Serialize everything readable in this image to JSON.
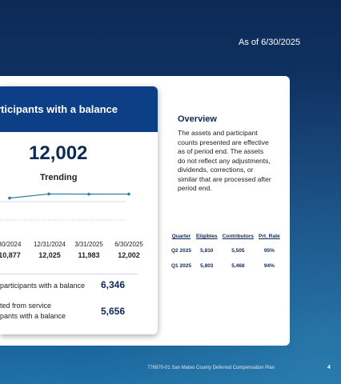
{
  "header": {
    "as_of": "As of 6/30/2025"
  },
  "participants_card": {
    "title": "rticipants with a balance",
    "current_value": "12,002",
    "trending_label": "Trending",
    "trend": [
      {
        "date": "30/2024",
        "value": "10,877",
        "num": 10877
      },
      {
        "date": "12/31/2024",
        "value": "12,025",
        "num": 12025
      },
      {
        "date": "3/31/2025",
        "value": "11,983",
        "num": 11983
      },
      {
        "date": "6/30/2025",
        "value": "12,002",
        "num": 12002
      }
    ],
    "stat1_label": "participants with a balance",
    "stat1_value": "6,346",
    "stat2_label_line1": "ted from service",
    "stat2_label_line2": "pants with a balance",
    "stat2_value": "5,656"
  },
  "overview": {
    "title": "Overview",
    "text": "The assets and participant counts presented are effective as of period end. The assets do not reflect any adjustments, dividends, corrections, or similar that are processed after period end."
  },
  "quarter_table": {
    "headers": [
      "Quarter",
      "Eligibles",
      "Contributors",
      "Prt. Rate"
    ],
    "rows": [
      [
        "Q2 2025",
        "5,810",
        "5,505",
        "95%"
      ],
      [
        "Q1 2025",
        "5,803",
        "5,468",
        "94%"
      ]
    ]
  },
  "footer": {
    "text": "776970-01 San Mateo County Deferred Compensation Plan",
    "page": "4"
  },
  "colors": {
    "accent": "#0d3f86",
    "line": "#2a7f9e"
  }
}
